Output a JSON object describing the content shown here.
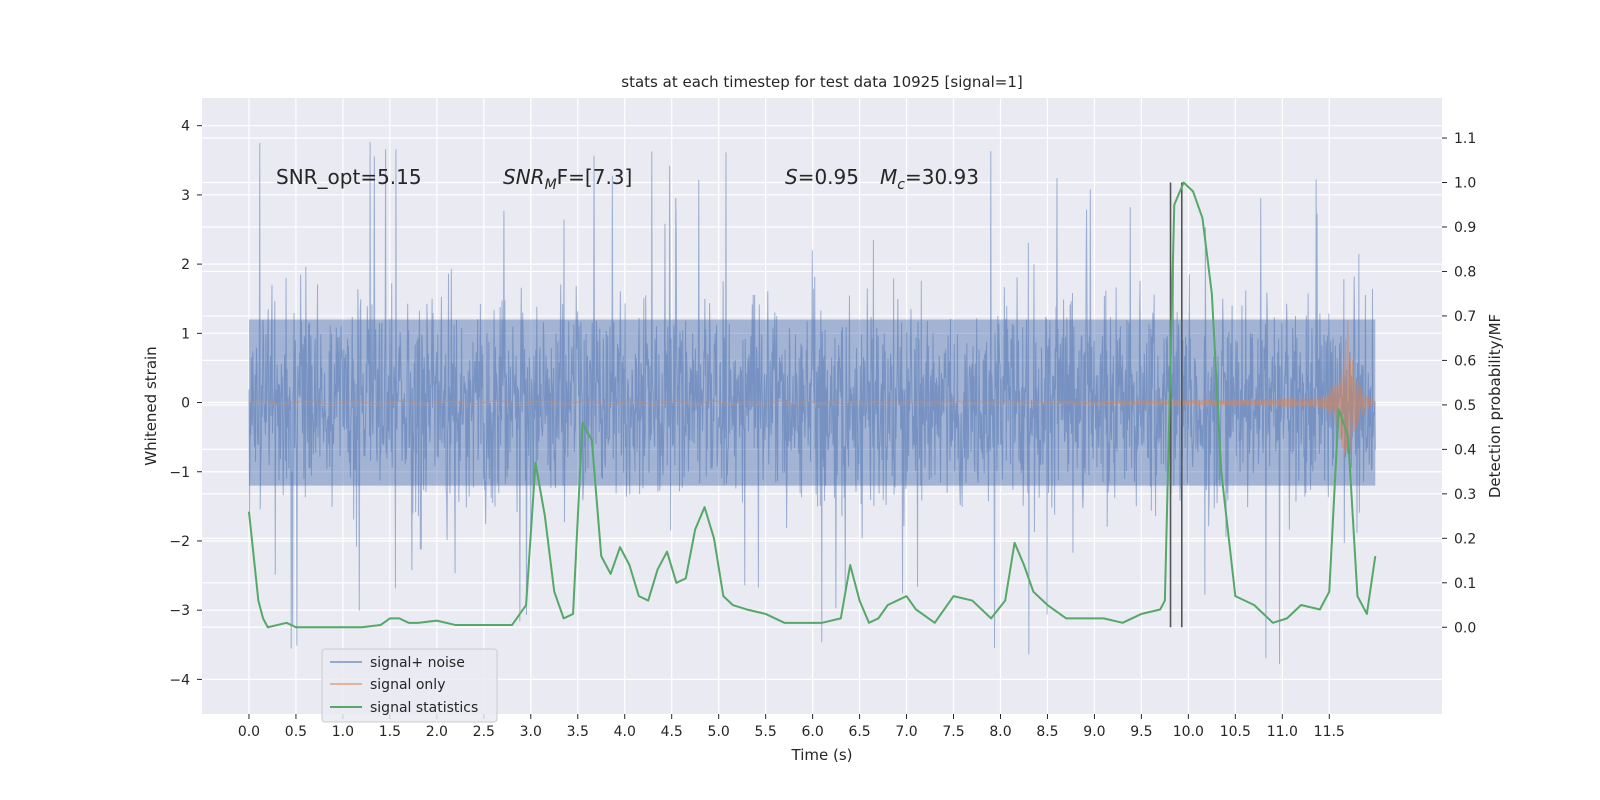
{
  "chart_data": {
    "type": "line",
    "title": "stats at each timestep for test data 10925 [signal=1]",
    "xlabel": "Time (s)",
    "ylabel_left": "Whitened strain",
    "ylabel_right": "Detection probability/MF",
    "xlim": [
      -0.5,
      12.7
    ],
    "ylim_left": [
      -4.5,
      4.4
    ],
    "ylim_right": [
      -0.195,
      1.19
    ],
    "x_ticks": [
      0.0,
      0.5,
      1.0,
      1.5,
      2.0,
      2.5,
      3.0,
      3.5,
      4.0,
      4.5,
      5.0,
      5.5,
      6.0,
      6.5,
      7.0,
      7.5,
      8.0,
      8.5,
      9.0,
      9.5,
      10.0,
      10.5,
      11.0,
      11.5
    ],
    "x_tick_labels": [
      "0.0",
      "0.5",
      "1.0",
      "1.5",
      "2.0",
      "2.5",
      "3.0",
      "3.5",
      "4.0",
      "4.5",
      "5.0",
      "5.5",
      "6.0",
      "6.5",
      "7.0",
      "7.5",
      "8.0",
      "8.5",
      "9.0",
      "9.5",
      "10.0",
      "10.5",
      "11.0",
      "11.5"
    ],
    "y_ticks_left": [
      4,
      3,
      2,
      1,
      0,
      -1,
      -2,
      -3,
      -4
    ],
    "y_tick_labels_left": [
      "4",
      "3",
      "2",
      "1",
      "0",
      "−1",
      "−2",
      "−3",
      "−4"
    ],
    "y_ticks_right": [
      1.1,
      1.0,
      0.9,
      0.8,
      0.7,
      0.6,
      0.5,
      0.4,
      0.3,
      0.2,
      0.1,
      0.0
    ],
    "y_tick_labels_right": [
      "1.1",
      "1.0",
      "0.9",
      "0.8",
      "0.7",
      "0.6",
      "0.5",
      "0.4",
      "0.3",
      "0.2",
      "0.1",
      "0.0"
    ],
    "annotations": {
      "snr_opt": "SNR_opt=5.15",
      "snr_mf_main": "SNR",
      "snr_mf_sub": "M",
      "snr_mf_rest": "F=[7.3]",
      "s_sym": "S",
      "s_val": "=0.95",
      "mc_sym": "M",
      "mc_sub": "c",
      "mc_val": "=30.93"
    },
    "legend": [
      "signal+ noise",
      "signal only",
      "signal statistics"
    ],
    "legend_position": "lower-left",
    "series": [
      {
        "name": "signal+ noise",
        "color": "#4c72b0",
        "axis": "left",
        "x_start": 0.0,
        "x_end": 11.99,
        "description_values": "white noise envelope",
        "core_band": [
          -1.2,
          1.2
        ],
        "typical_extremes": [
          -2.5,
          2.4
        ],
        "peak_max": 4.0,
        "peak_min": -4.1
      },
      {
        "name": "signal only",
        "color": "#dd8452",
        "axis": "left",
        "x_start": 0.0,
        "x_end": 11.99,
        "chirp_peak_time": 11.7,
        "chirp_peak_amplitude": 1.15
      },
      {
        "name": "signal statistics",
        "color": "#55a868",
        "axis": "right",
        "x": [
          0.0,
          0.1,
          0.15,
          0.2,
          0.3,
          0.4,
          0.5,
          0.6,
          0.8,
          1.0,
          1.2,
          1.4,
          1.5,
          1.6,
          1.7,
          1.8,
          2.0,
          2.2,
          2.4,
          2.6,
          2.8,
          2.95,
          3.05,
          3.15,
          3.25,
          3.35,
          3.45,
          3.55,
          3.65,
          3.75,
          3.85,
          3.95,
          4.05,
          4.15,
          4.25,
          4.35,
          4.45,
          4.55,
          4.65,
          4.75,
          4.85,
          4.95,
          5.05,
          5.15,
          5.3,
          5.5,
          5.7,
          5.9,
          6.1,
          6.3,
          6.4,
          6.5,
          6.6,
          6.7,
          6.8,
          6.9,
          7.0,
          7.1,
          7.3,
          7.5,
          7.7,
          7.9,
          8.05,
          8.15,
          8.25,
          8.35,
          8.5,
          8.7,
          8.9,
          9.1,
          9.3,
          9.5,
          9.7,
          9.75,
          9.85,
          9.95,
          10.05,
          10.15,
          10.25,
          10.35,
          10.5,
          10.7,
          10.9,
          11.05,
          11.2,
          11.4,
          11.5,
          11.6,
          11.7,
          11.8,
          11.9,
          11.99
        ],
        "values": [
          0.26,
          0.06,
          0.02,
          0.0,
          0.005,
          0.01,
          0.0,
          0.0,
          0.0,
          0.0,
          0.0,
          0.005,
          0.02,
          0.02,
          0.01,
          0.01,
          0.015,
          0.005,
          0.005,
          0.005,
          0.005,
          0.05,
          0.37,
          0.25,
          0.08,
          0.02,
          0.03,
          0.46,
          0.42,
          0.16,
          0.12,
          0.18,
          0.14,
          0.07,
          0.06,
          0.13,
          0.17,
          0.1,
          0.11,
          0.22,
          0.27,
          0.2,
          0.07,
          0.05,
          0.04,
          0.03,
          0.01,
          0.01,
          0.01,
          0.02,
          0.14,
          0.06,
          0.01,
          0.02,
          0.05,
          0.06,
          0.07,
          0.04,
          0.01,
          0.07,
          0.06,
          0.02,
          0.06,
          0.19,
          0.14,
          0.08,
          0.05,
          0.02,
          0.02,
          0.02,
          0.01,
          0.03,
          0.04,
          0.06,
          0.95,
          1.0,
          0.98,
          0.92,
          0.75,
          0.35,
          0.07,
          0.05,
          0.01,
          0.02,
          0.05,
          0.04,
          0.08,
          0.49,
          0.43,
          0.07,
          0.03,
          0.16
        ]
      }
    ],
    "vertical_lines": [
      {
        "x": 9.81,
        "color": "#555555",
        "ymax_right": 1.0
      },
      {
        "x": 9.93,
        "color": "#555555",
        "ymax_right": 1.0
      }
    ]
  }
}
